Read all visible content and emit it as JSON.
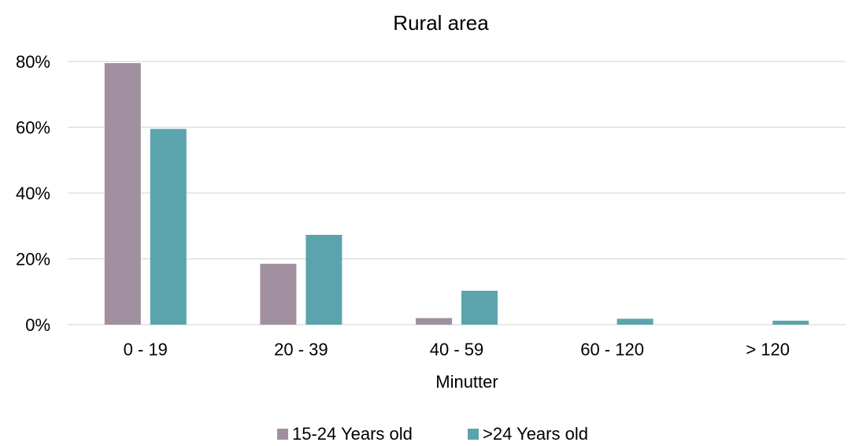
{
  "chart_data": {
    "type": "bar",
    "title": "Rural area",
    "xlabel": "Minutter",
    "ylabel": "",
    "categories": [
      "0 - 19",
      "20 - 39",
      "40 - 59",
      "60 - 120",
      "> 120"
    ],
    "series": [
      {
        "name": "15-24 Years old",
        "color": "#a0909f",
        "values": [
          79.5,
          18.5,
          2.0,
          0,
          0
        ]
      },
      {
        "name": ">24 Years old",
        "color": "#5ba4ae",
        "values": [
          59.5,
          27.3,
          10.3,
          1.8,
          1.2
        ]
      }
    ],
    "ylim": [
      0,
      80
    ],
    "yticks": [
      "0%",
      "20%",
      "40%",
      "60%",
      "80%"
    ],
    "ytick_values": [
      0,
      20,
      40,
      60,
      80
    ],
    "grid": true,
    "legend_position": "bottom"
  }
}
